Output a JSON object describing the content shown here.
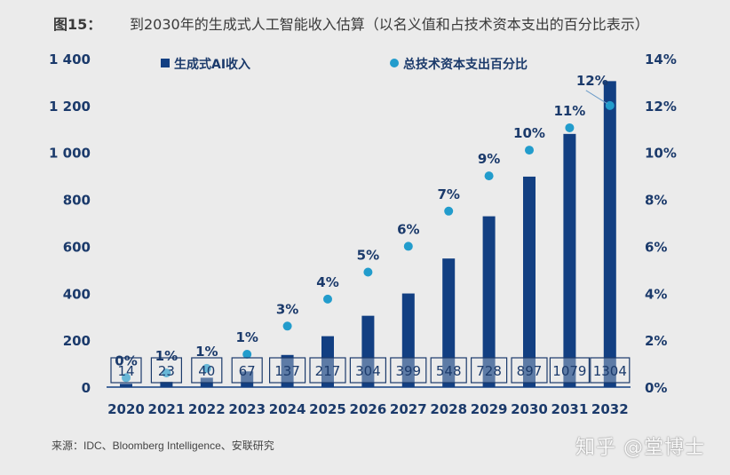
{
  "header": {
    "figure_label": "图15：",
    "title": "到2030年的生成式人工智能收入估算（以名义值和占技术资本支出的百分比表示）"
  },
  "footer": {
    "source": "来源：IDC、Bloomberg Intelligence、安联研究",
    "watermark": "知乎 @堂博士"
  },
  "colors": {
    "bar": "#123f82",
    "dot": "#229ccc",
    "text": "#1b3a6b",
    "box_border": "#1b3a6b"
  },
  "chart_data": {
    "type": "bar",
    "title": "到2030年的生成式人工智能收入估算（以名义值和占技术资本支出的百分比表示）",
    "categories": [
      "2020",
      "2021",
      "2022",
      "2023",
      "2024",
      "2025",
      "2026",
      "2027",
      "2028",
      "2029",
      "2030",
      "2031",
      "2032"
    ],
    "series": [
      {
        "name": "生成式AI收入",
        "type": "bar",
        "axis": "left",
        "values": [
          14,
          23,
          40,
          67,
          137,
          217,
          304,
          399,
          548,
          728,
          897,
          1079,
          1304
        ],
        "labels": [
          "14",
          "23",
          "40",
          "67",
          "137",
          "217",
          "304",
          "399",
          "548",
          "728",
          "897",
          "1079",
          "1304"
        ]
      },
      {
        "name": "总技术资本支出百分比",
        "type": "scatter",
        "axis": "right",
        "values": [
          0.4,
          0.6,
          0.8,
          1.4,
          2.6,
          3.75,
          4.9,
          6.0,
          7.5,
          9.0,
          10.1,
          11.05,
          12.0
        ],
        "labels": [
          "0%",
          "1%",
          "1%",
          "1%",
          "3%",
          "4%",
          "5%",
          "6%",
          "7%",
          "9%",
          "10%",
          "11%",
          "12%"
        ]
      }
    ],
    "y_left": {
      "ylim": [
        0,
        1400
      ],
      "ticks": [
        0,
        200,
        400,
        600,
        800,
        1000,
        1200,
        1400
      ],
      "tick_labels": [
        "0",
        "200",
        "400",
        "600",
        "800",
        "1 000",
        "1 200",
        "1 400"
      ]
    },
    "y_right": {
      "ylim": [
        0,
        14
      ],
      "ticks": [
        0,
        2,
        4,
        6,
        8,
        10,
        12,
        14
      ],
      "tick_labels": [
        "0%",
        "2%",
        "4%",
        "6%",
        "8%",
        "10%",
        "12%",
        "14%"
      ]
    },
    "xlabel": "",
    "ylabel": "",
    "grid": false,
    "legend": {
      "position": "top",
      "entries": [
        "生成式AI收入",
        "总技术资本支出百分比"
      ]
    }
  }
}
